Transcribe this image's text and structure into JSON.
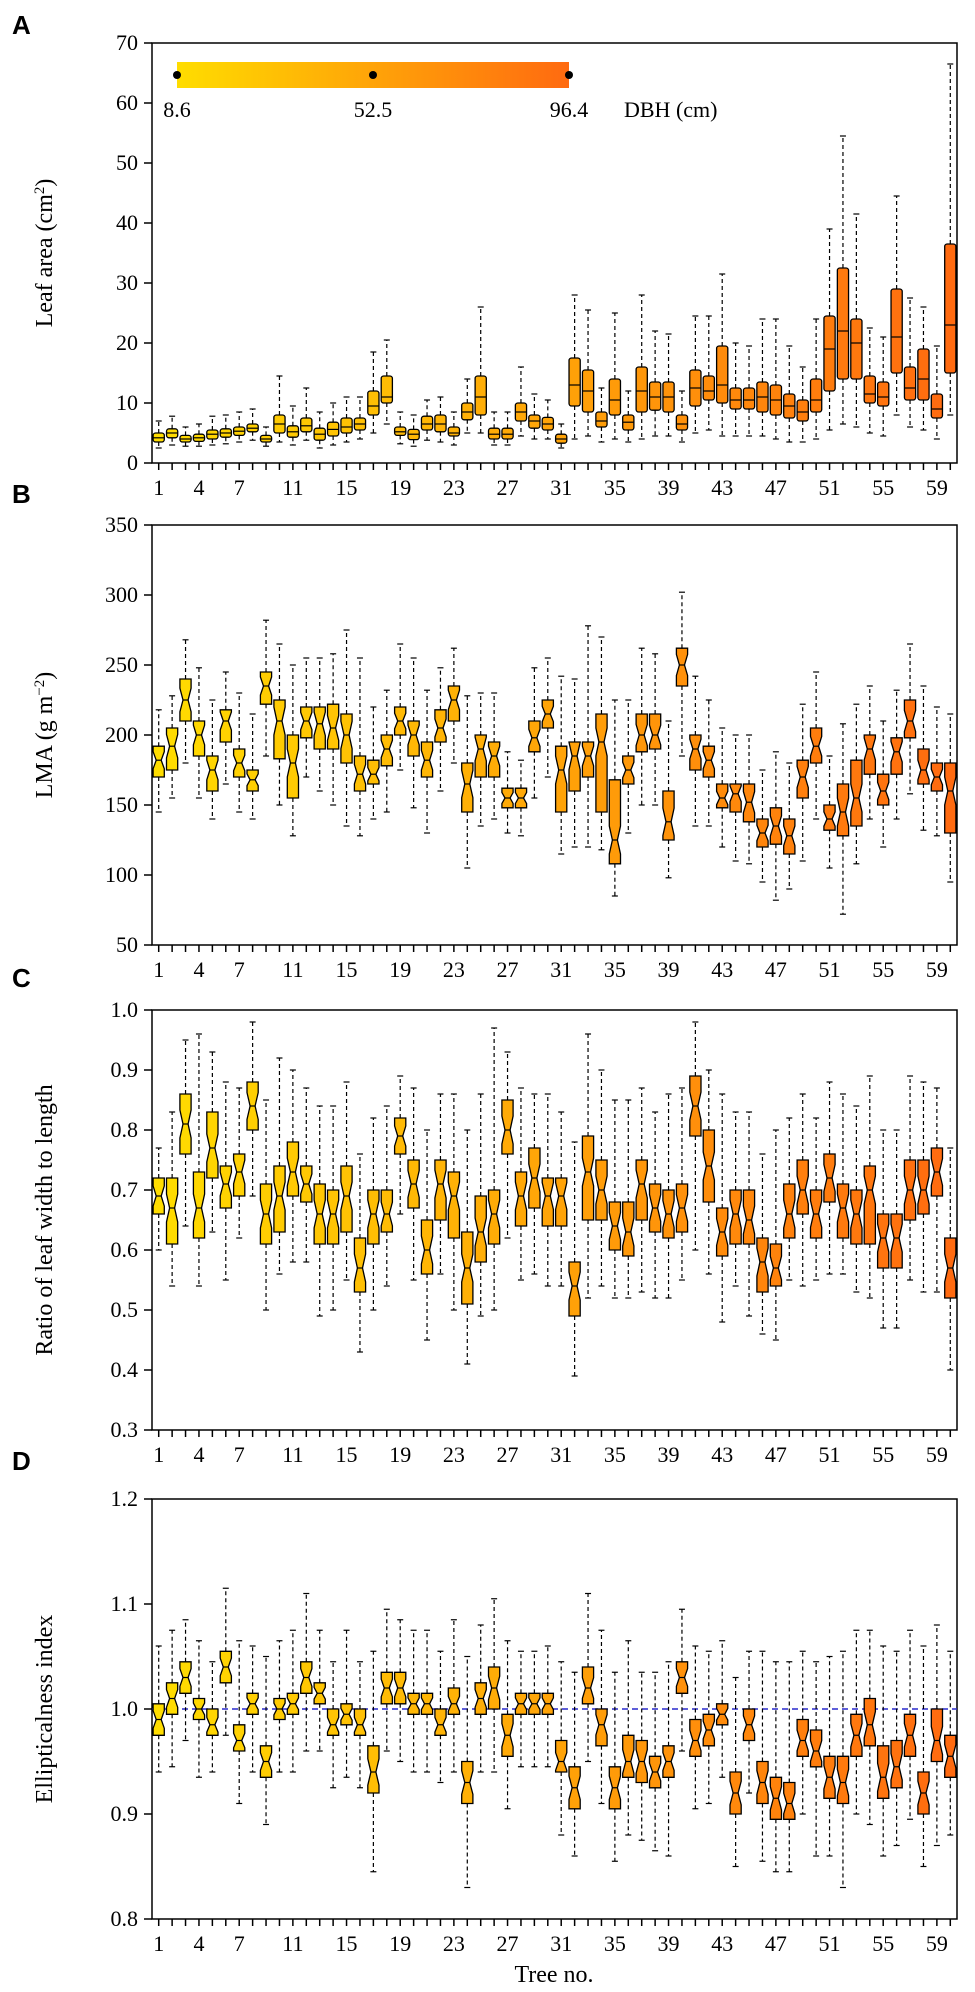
{
  "figure": {
    "x_label": "Tree no.",
    "x_tick_labels": [
      "1",
      "4",
      "7",
      "11",
      "15",
      "19",
      "23",
      "27",
      "31",
      "35",
      "39",
      "43",
      "47",
      "51",
      "55",
      "59"
    ],
    "color_bar": {
      "label": "DBH (cm)",
      "tick_labels": [
        "8.6",
        "52.5",
        "96.4"
      ],
      "colors": [
        "#ffdd00",
        "#ff6a10"
      ]
    },
    "styles": {
      "box_edge": "#000000",
      "reference_line": "#2a2acc"
    }
  },
  "chart_data": [
    {
      "type": "box",
      "panel": "A",
      "title": "",
      "ylabel_parts": [
        "Leaf area (cm",
        "2",
        ")"
      ],
      "ylim": [
        0,
        70
      ],
      "y_tick_labels": [
        "0",
        "10",
        "20",
        "30",
        "40",
        "50",
        "60",
        "70"
      ],
      "notched": false,
      "q1": [
        3.5,
        4.2,
        3.5,
        3.6,
        4.0,
        4.3,
        4.6,
        5.2,
        3.5,
        5.0,
        4.3,
        5.2,
        3.8,
        4.5,
        5.0,
        5.5,
        8.0,
        10.0,
        4.6,
        3.9,
        5.5,
        5.2,
        4.5,
        7.2,
        8.0,
        4.0,
        4.0,
        7.0,
        5.8,
        5.5,
        3.3,
        9.5,
        8.5,
        6.0,
        8.0,
        5.5,
        8.5,
        8.8,
        8.5,
        5.5,
        9.5,
        10.5,
        10.0,
        9.0,
        9.0,
        8.5,
        8.0,
        7.5,
        7.0,
        8.5,
        12.0,
        14.0,
        14.0,
        10.0,
        9.5,
        15.0,
        10.5,
        10.5,
        7.5,
        15.0
      ],
      "med": [
        4.2,
        5.0,
        4.0,
        4.2,
        4.8,
        5.0,
        5.3,
        5.8,
        4.0,
        6.5,
        5.2,
        6.2,
        4.8,
        5.6,
        6.0,
        6.5,
        9.5,
        11.0,
        5.2,
        4.8,
        6.5,
        6.5,
        5.0,
        8.5,
        11.0,
        4.8,
        4.8,
        8.5,
        7.0,
        6.5,
        4.0,
        13.0,
        12.0,
        7.0,
        10.5,
        6.8,
        12.0,
        11.0,
        11.0,
        6.5,
        12.5,
        12.0,
        13.0,
        10.5,
        10.5,
        11.0,
        10.5,
        9.5,
        8.5,
        10.5,
        19.0,
        22.0,
        20.0,
        11.5,
        11.0,
        21.0,
        12.5,
        14.0,
        9.0,
        23.0
      ],
      "q3": [
        5.0,
        5.7,
        4.6,
        4.8,
        5.5,
        5.7,
        6.0,
        6.5,
        4.6,
        8.0,
        6.2,
        7.5,
        5.8,
        6.8,
        7.5,
        7.5,
        12.0,
        14.5,
        6.0,
        5.6,
        7.8,
        8.0,
        6.0,
        10.0,
        14.5,
        5.8,
        5.8,
        10.0,
        8.0,
        7.6,
        4.8,
        17.5,
        15.5,
        8.5,
        14.0,
        8.0,
        16.0,
        13.5,
        13.5,
        8.0,
        15.5,
        14.5,
        19.5,
        12.5,
        12.5,
        13.5,
        13.0,
        11.5,
        10.5,
        14.0,
        24.5,
        32.5,
        24.0,
        14.5,
        13.5,
        29.0,
        16.0,
        19.0,
        11.5,
        36.5
      ],
      "wlo": [
        2.5,
        3.0,
        2.8,
        2.8,
        3.0,
        3.2,
        3.5,
        3.8,
        2.8,
        3.5,
        3.0,
        3.8,
        2.5,
        3.0,
        3.5,
        4.0,
        5.0,
        6.5,
        3.2,
        2.8,
        3.8,
        3.5,
        3.0,
        5.0,
        5.0,
        3.0,
        3.0,
        4.5,
        4.0,
        4.0,
        2.5,
        4.0,
        4.5,
        3.5,
        4.0,
        3.5,
        4.0,
        4.5,
        4.5,
        3.5,
        5.0,
        5.5,
        4.5,
        4.5,
        4.5,
        4.5,
        4.0,
        3.5,
        3.5,
        4.0,
        5.5,
        6.5,
        6.0,
        5.0,
        4.5,
        8.0,
        6.0,
        5.5,
        4.0,
        8.0
      ],
      "whi": [
        7.0,
        7.8,
        6.0,
        6.5,
        7.8,
        8.0,
        8.5,
        9.0,
        6.0,
        14.5,
        9.5,
        12.5,
        8.5,
        10.0,
        11.0,
        11.0,
        18.5,
        20.5,
        8.5,
        8.0,
        10.5,
        11.0,
        8.5,
        14.0,
        26.0,
        8.5,
        8.5,
        16.0,
        11.5,
        10.5,
        6.5,
        28.0,
        25.5,
        12.5,
        25.0,
        12.0,
        28.0,
        22.0,
        21.5,
        12.0,
        24.5,
        24.5,
        31.5,
        20.0,
        19.5,
        24.0,
        24.0,
        19.5,
        16.0,
        24.0,
        39.0,
        54.5,
        41.5,
        22.5,
        21.0,
        44.5,
        27.5,
        26.0,
        19.5,
        66.5
      ]
    },
    {
      "type": "box",
      "panel": "B",
      "title": "",
      "ylabel_parts": [
        "LMA (g m",
        "−2",
        ")"
      ],
      "ylim": [
        50,
        350
      ],
      "y_tick_labels": [
        "50",
        "100",
        "150",
        "200",
        "250",
        "300",
        "350"
      ],
      "notched": true,
      "q1": [
        170,
        175,
        210,
        185,
        160,
        195,
        170,
        160,
        222,
        183,
        155,
        198,
        190,
        190,
        180,
        160,
        165,
        178,
        200,
        185,
        170,
        195,
        210,
        145,
        170,
        170,
        148,
        148,
        188,
        205,
        145,
        160,
        170,
        145,
        108,
        165,
        188,
        190,
        125,
        235,
        175,
        170,
        148,
        145,
        138,
        120,
        122,
        115,
        155,
        180,
        132,
        128,
        135,
        172,
        150,
        172,
        198,
        165,
        160,
        130
      ],
      "med": [
        182,
        192,
        225,
        200,
        175,
        210,
        180,
        168,
        235,
        210,
        180,
        210,
        208,
        205,
        200,
        172,
        172,
        190,
        210,
        200,
        182,
        205,
        225,
        165,
        190,
        185,
        155,
        155,
        198,
        215,
        175,
        185,
        185,
        195,
        125,
        175,
        200,
        200,
        138,
        250,
        190,
        182,
        155,
        158,
        152,
        130,
        135,
        128,
        170,
        192,
        140,
        145,
        155,
        190,
        160,
        188,
        210,
        175,
        170,
        160
      ],
      "q3": [
        192,
        205,
        240,
        210,
        185,
        218,
        190,
        175,
        245,
        225,
        200,
        220,
        220,
        222,
        215,
        185,
        182,
        200,
        220,
        210,
        195,
        218,
        235,
        180,
        200,
        195,
        162,
        162,
        210,
        225,
        192,
        195,
        195,
        215,
        168,
        185,
        215,
        215,
        160,
        262,
        200,
        192,
        165,
        165,
        165,
        140,
        148,
        140,
        182,
        205,
        150,
        165,
        182,
        200,
        172,
        198,
        225,
        190,
        180,
        180
      ],
      "wlo": [
        145,
        155,
        180,
        155,
        140,
        165,
        145,
        140,
        185,
        150,
        128,
        170,
        160,
        150,
        135,
        128,
        140,
        145,
        175,
        148,
        130,
        160,
        180,
        105,
        135,
        140,
        130,
        128,
        155,
        170,
        115,
        120,
        120,
        118,
        85,
        130,
        150,
        150,
        98,
        185,
        135,
        135,
        120,
        110,
        108,
        95,
        82,
        90,
        110,
        140,
        105,
        72,
        108,
        140,
        120,
        140,
        158,
        132,
        128,
        95
      ],
      "whi": [
        218,
        228,
        268,
        248,
        225,
        245,
        230,
        215,
        282,
        265,
        250,
        255,
        255,
        258,
        275,
        255,
        220,
        232,
        265,
        255,
        232,
        248,
        262,
        228,
        230,
        230,
        188,
        182,
        248,
        255,
        242,
        240,
        278,
        270,
        225,
        225,
        262,
        258,
        210,
        302,
        242,
        225,
        205,
        200,
        200,
        175,
        188,
        180,
        222,
        245,
        185,
        208,
        222,
        235,
        210,
        232,
        265,
        235,
        220,
        215
      ]
    },
    {
      "type": "box",
      "panel": "C",
      "title": "",
      "ylabel_parts": [
        "Ratio of leaf width to length",
        "",
        ""
      ],
      "ylim": [
        0.3,
        1.0
      ],
      "y_tick_labels": [
        "0.3",
        "0.4",
        "0.5",
        "0.6",
        "0.7",
        "0.8",
        "0.9",
        "1.0"
      ],
      "notched": true,
      "q1": [
        0.66,
        0.61,
        0.76,
        0.62,
        0.72,
        0.67,
        0.69,
        0.8,
        0.61,
        0.63,
        0.69,
        0.68,
        0.61,
        0.61,
        0.63,
        0.53,
        0.61,
        0.63,
        0.76,
        0.67,
        0.56,
        0.65,
        0.62,
        0.51,
        0.58,
        0.61,
        0.76,
        0.64,
        0.67,
        0.64,
        0.64,
        0.49,
        0.65,
        0.65,
        0.6,
        0.59,
        0.65,
        0.63,
        0.62,
        0.63,
        0.79,
        0.68,
        0.59,
        0.61,
        0.61,
        0.53,
        0.54,
        0.62,
        0.66,
        0.62,
        0.68,
        0.62,
        0.61,
        0.61,
        0.57,
        0.57,
        0.65,
        0.66,
        0.69,
        0.52
      ],
      "med": [
        0.69,
        0.67,
        0.81,
        0.67,
        0.77,
        0.71,
        0.73,
        0.84,
        0.66,
        0.69,
        0.73,
        0.71,
        0.66,
        0.66,
        0.69,
        0.57,
        0.66,
        0.66,
        0.79,
        0.71,
        0.6,
        0.71,
        0.69,
        0.57,
        0.63,
        0.66,
        0.8,
        0.69,
        0.72,
        0.69,
        0.69,
        0.54,
        0.73,
        0.7,
        0.64,
        0.63,
        0.71,
        0.67,
        0.66,
        0.67,
        0.84,
        0.74,
        0.63,
        0.66,
        0.65,
        0.58,
        0.57,
        0.66,
        0.7,
        0.66,
        0.72,
        0.67,
        0.66,
        0.7,
        0.62,
        0.62,
        0.7,
        0.7,
        0.73,
        0.57
      ],
      "q3": [
        0.72,
        0.72,
        0.86,
        0.73,
        0.83,
        0.74,
        0.76,
        0.88,
        0.71,
        0.74,
        0.78,
        0.74,
        0.71,
        0.7,
        0.74,
        0.62,
        0.7,
        0.7,
        0.82,
        0.75,
        0.65,
        0.75,
        0.73,
        0.63,
        0.69,
        0.7,
        0.85,
        0.73,
        0.77,
        0.72,
        0.72,
        0.58,
        0.79,
        0.75,
        0.68,
        0.68,
        0.75,
        0.71,
        0.7,
        0.71,
        0.89,
        0.8,
        0.67,
        0.7,
        0.7,
        0.62,
        0.61,
        0.71,
        0.75,
        0.7,
        0.76,
        0.71,
        0.7,
        0.74,
        0.66,
        0.66,
        0.75,
        0.75,
        0.77,
        0.62
      ],
      "wlo": [
        0.6,
        0.54,
        0.64,
        0.54,
        0.63,
        0.55,
        0.62,
        0.69,
        0.5,
        0.56,
        0.58,
        0.58,
        0.49,
        0.5,
        0.55,
        0.43,
        0.5,
        0.54,
        0.66,
        0.55,
        0.45,
        0.56,
        0.5,
        0.41,
        0.49,
        0.5,
        0.62,
        0.55,
        0.56,
        0.54,
        0.54,
        0.39,
        0.52,
        0.54,
        0.52,
        0.52,
        0.53,
        0.52,
        0.52,
        0.55,
        0.6,
        0.56,
        0.48,
        0.54,
        0.49,
        0.46,
        0.45,
        0.55,
        0.54,
        0.55,
        0.56,
        0.56,
        0.53,
        0.52,
        0.47,
        0.47,
        0.55,
        0.53,
        0.53,
        0.4
      ],
      "whi": [
        0.77,
        0.83,
        0.95,
        0.96,
        0.93,
        0.88,
        0.87,
        0.98,
        0.85,
        0.92,
        0.9,
        0.87,
        0.84,
        0.84,
        0.88,
        0.76,
        0.82,
        0.84,
        0.89,
        0.87,
        0.8,
        0.86,
        0.86,
        0.8,
        0.86,
        0.97,
        0.93,
        0.87,
        0.86,
        0.86,
        0.83,
        0.78,
        0.96,
        0.9,
        0.85,
        0.85,
        0.87,
        0.83,
        0.86,
        0.87,
        0.98,
        0.9,
        0.86,
        0.83,
        0.83,
        0.76,
        0.8,
        0.82,
        0.86,
        0.82,
        0.88,
        0.86,
        0.84,
        0.89,
        0.8,
        0.8,
        0.89,
        0.88,
        0.87,
        0.77
      ]
    },
    {
      "type": "box",
      "panel": "D",
      "title": "",
      "ylabel_parts": [
        "Ellipticalness index",
        "",
        ""
      ],
      "ylim": [
        0.8,
        1.2
      ],
      "y_tick_labels": [
        "0.8",
        "0.9",
        "1.0",
        "1.1",
        "1.2"
      ],
      "notched": true,
      "reference_line": 1.0,
      "q1": [
        0.975,
        0.995,
        1.015,
        0.99,
        0.975,
        1.025,
        0.96,
        0.995,
        0.935,
        0.99,
        0.995,
        1.015,
        1.005,
        0.975,
        0.985,
        0.975,
        0.92,
        1.005,
        1.005,
        0.995,
        0.995,
        0.975,
        0.995,
        0.91,
        0.995,
        1.0,
        0.955,
        0.995,
        0.995,
        0.995,
        0.94,
        0.905,
        1.005,
        0.965,
        0.905,
        0.935,
        0.93,
        0.925,
        0.935,
        1.015,
        0.955,
        0.965,
        0.985,
        0.9,
        0.97,
        0.91,
        0.895,
        0.895,
        0.955,
        0.945,
        0.915,
        0.91,
        0.955,
        0.965,
        0.915,
        0.925,
        0.955,
        0.9,
        0.95,
        0.935
      ],
      "med": [
        0.99,
        1.01,
        1.03,
        1.0,
        0.985,
        1.04,
        0.97,
        1.005,
        0.95,
        1.0,
        1.005,
        1.03,
        1.015,
        0.985,
        0.995,
        0.985,
        0.94,
        1.02,
        1.02,
        1.005,
        1.005,
        0.985,
        1.005,
        0.93,
        1.01,
        1.02,
        0.975,
        1.005,
        1.005,
        1.005,
        0.95,
        0.925,
        1.02,
        0.985,
        0.925,
        0.95,
        0.95,
        0.94,
        0.95,
        1.03,
        0.97,
        0.98,
        0.995,
        0.92,
        0.985,
        0.93,
        0.915,
        0.91,
        0.97,
        0.96,
        0.935,
        0.93,
        0.975,
        0.985,
        0.935,
        0.945,
        0.975,
        0.92,
        0.97,
        0.955
      ],
      "q3": [
        1.005,
        1.025,
        1.045,
        1.01,
        1.0,
        1.055,
        0.985,
        1.015,
        0.965,
        1.01,
        1.015,
        1.045,
        1.025,
        1.0,
        1.005,
        1.0,
        0.965,
        1.035,
        1.035,
        1.015,
        1.015,
        1.0,
        1.02,
        0.95,
        1.025,
        1.04,
        0.995,
        1.015,
        1.015,
        1.015,
        0.97,
        0.945,
        1.04,
        1.0,
        0.945,
        0.975,
        0.97,
        0.955,
        0.965,
        1.045,
        0.99,
        0.995,
        1.005,
        0.94,
        1.0,
        0.95,
        0.935,
        0.93,
        0.99,
        0.98,
        0.955,
        0.955,
        0.995,
        1.01,
        0.965,
        0.97,
        0.995,
        0.94,
        1.0,
        0.975
      ],
      "wlo": [
        0.94,
        0.945,
        0.97,
        0.935,
        0.94,
        0.975,
        0.91,
        0.94,
        0.89,
        0.94,
        0.94,
        0.96,
        0.96,
        0.925,
        0.935,
        0.925,
        0.845,
        0.96,
        0.95,
        0.94,
        0.94,
        0.93,
        0.94,
        0.83,
        0.94,
        0.94,
        0.905,
        0.945,
        0.945,
        0.945,
        0.88,
        0.86,
        0.95,
        0.91,
        0.855,
        0.88,
        0.875,
        0.865,
        0.86,
        0.96,
        0.905,
        0.91,
        0.935,
        0.85,
        0.92,
        0.855,
        0.845,
        0.845,
        0.9,
        0.86,
        0.86,
        0.83,
        0.9,
        0.89,
        0.86,
        0.87,
        0.895,
        0.85,
        0.87,
        0.88
      ],
      "whi": [
        1.06,
        1.075,
        1.085,
        1.065,
        1.045,
        1.115,
        1.065,
        1.06,
        1.05,
        1.065,
        1.075,
        1.11,
        1.075,
        1.045,
        1.075,
        1.045,
        1.055,
        1.095,
        1.085,
        1.075,
        1.075,
        1.055,
        1.085,
        1.05,
        1.08,
        1.105,
        1.065,
        1.055,
        1.055,
        1.06,
        1.045,
        1.035,
        1.11,
        1.075,
        1.035,
        1.065,
        1.035,
        1.035,
        1.045,
        1.095,
        1.06,
        1.055,
        1.065,
        1.03,
        1.055,
        1.055,
        1.045,
        1.045,
        1.055,
        1.045,
        1.05,
        1.055,
        1.075,
        1.075,
        1.06,
        1.055,
        1.075,
        1.06,
        1.08,
        1.055
      ]
    }
  ]
}
